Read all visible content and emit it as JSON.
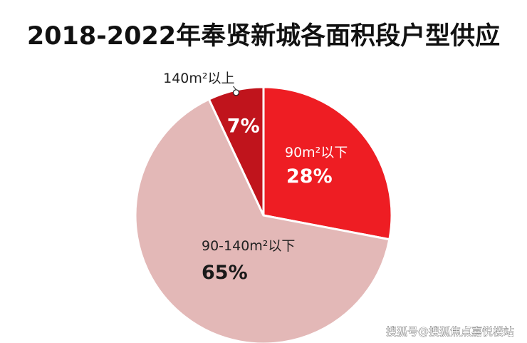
{
  "chart_data": {
    "type": "pie",
    "title": "2018-2022年奉贤新城各面积段户型供应",
    "slices": [
      {
        "label": "90m²以下",
        "value": 28,
        "display": "28%",
        "color": "#ee1d23"
      },
      {
        "label": "90-140m²以下",
        "value": 65,
        "display": "65%",
        "color": "#e3b8b7"
      },
      {
        "label": "140m²以上",
        "value": 7,
        "display": "7%",
        "color": "#c0141c"
      }
    ],
    "start": "12 o'clock",
    "direction": "clockwise",
    "legend": "none"
  },
  "watermark": "搜狐号@搜狐焦点嘉悦楼站"
}
